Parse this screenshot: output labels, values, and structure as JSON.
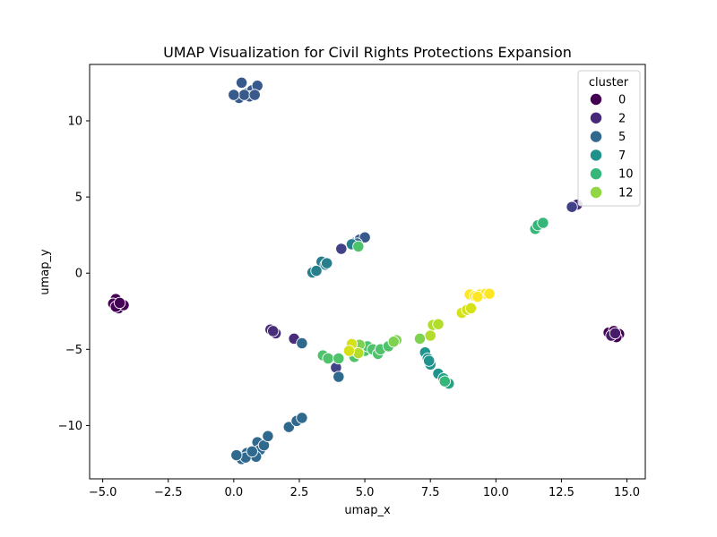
{
  "chart_data": {
    "type": "scatter",
    "title": "UMAP Visualization for Civil Rights Protections Expansion",
    "xlabel": "umap_x",
    "ylabel": "umap_y",
    "xlim": [
      -5.5,
      15.7
    ],
    "ylim": [
      -13.5,
      13.7
    ],
    "xticks": [
      -5.0,
      -2.5,
      0.0,
      2.5,
      5.0,
      7.5,
      10.0,
      12.5,
      15.0
    ],
    "xtick_labels": [
      "−5.0",
      "−2.5",
      "0.0",
      "2.5",
      "5.0",
      "7.5",
      "10.0",
      "12.5",
      "15.0"
    ],
    "yticks": [
      -10,
      -5,
      0,
      5,
      10
    ],
    "ytick_labels": [
      "−10",
      "−5",
      "0",
      "5",
      "10"
    ],
    "grid": false,
    "legend": {
      "title": "cluster",
      "placement": "top-right",
      "entries": [
        {
          "label": "0",
          "color": "#440154"
        },
        {
          "label": "2",
          "color": "#482878"
        },
        {
          "label": "5",
          "color": "#31688e"
        },
        {
          "label": "7",
          "color": "#21918c"
        },
        {
          "label": "10",
          "color": "#35b779"
        },
        {
          "label": "12",
          "color": "#90d743"
        }
      ]
    },
    "points": [
      {
        "x": -4.5,
        "y": -1.7,
        "cluster": 0
      },
      {
        "x": -4.6,
        "y": -2.0,
        "cluster": 0
      },
      {
        "x": -4.4,
        "y": -2.3,
        "cluster": 0
      },
      {
        "x": -4.2,
        "y": -2.1,
        "cluster": 0
      },
      {
        "x": -4.5,
        "y": -2.2,
        "cluster": 0
      },
      {
        "x": -4.35,
        "y": -1.95,
        "cluster": 0
      },
      {
        "x": 14.3,
        "y": -3.9,
        "cluster": 0
      },
      {
        "x": 14.5,
        "y": -3.8,
        "cluster": 0
      },
      {
        "x": 14.7,
        "y": -4.0,
        "cluster": 0
      },
      {
        "x": 14.6,
        "y": -4.2,
        "cluster": 0
      },
      {
        "x": 14.4,
        "y": -4.1,
        "cluster": 1
      },
      {
        "x": 14.55,
        "y": -3.95,
        "cluster": 1
      },
      {
        "x": 1.4,
        "y": -3.7,
        "cluster": 2
      },
      {
        "x": 1.6,
        "y": -3.95,
        "cluster": 2
      },
      {
        "x": 1.5,
        "y": -3.8,
        "cluster": 2
      },
      {
        "x": 2.3,
        "y": -4.3,
        "cluster": 2
      },
      {
        "x": 13.1,
        "y": 4.5,
        "cluster": 2
      },
      {
        "x": 4.1,
        "y": 1.6,
        "cluster": 3
      },
      {
        "x": 12.9,
        "y": 4.35,
        "cluster": 3
      },
      {
        "x": 3.9,
        "y": -6.2,
        "cluster": 3
      },
      {
        "x": 0.3,
        "y": 12.5,
        "cluster": 4
      },
      {
        "x": 0.1,
        "y": 11.6,
        "cluster": 4
      },
      {
        "x": 0.5,
        "y": 11.8,
        "cluster": 4
      },
      {
        "x": 0.7,
        "y": 12.0,
        "cluster": 4
      },
      {
        "x": 0.9,
        "y": 12.3,
        "cluster": 4
      },
      {
        "x": 0.6,
        "y": 11.6,
        "cluster": 4
      },
      {
        "x": 0.2,
        "y": 11.5,
        "cluster": 4
      },
      {
        "x": 0.4,
        "y": 11.7,
        "cluster": 4
      },
      {
        "x": 0.8,
        "y": 11.7,
        "cluster": 4
      },
      {
        "x": 0.0,
        "y": 11.7,
        "cluster": 4
      },
      {
        "x": 4.6,
        "y": 2.0,
        "cluster": 4
      },
      {
        "x": 4.8,
        "y": 2.2,
        "cluster": 4
      },
      {
        "x": 5.0,
        "y": 2.35,
        "cluster": 4
      },
      {
        "x": 0.25,
        "y": -12.0,
        "cluster": 5
      },
      {
        "x": 0.3,
        "y": -12.2,
        "cluster": 5
      },
      {
        "x": 0.5,
        "y": -11.8,
        "cluster": 5
      },
      {
        "x": 0.9,
        "y": -11.1,
        "cluster": 5
      },
      {
        "x": 1.0,
        "y": -11.6,
        "cluster": 5
      },
      {
        "x": 1.15,
        "y": -11.3,
        "cluster": 5
      },
      {
        "x": 0.85,
        "y": -12.05,
        "cluster": 5
      },
      {
        "x": 0.45,
        "y": -12.1,
        "cluster": 5
      },
      {
        "x": 0.1,
        "y": -11.95,
        "cluster": 5
      },
      {
        "x": 0.7,
        "y": -11.7,
        "cluster": 5
      },
      {
        "x": 1.3,
        "y": -10.7,
        "cluster": 5
      },
      {
        "x": 2.1,
        "y": -10.1,
        "cluster": 5
      },
      {
        "x": 2.4,
        "y": -9.7,
        "cluster": 5
      },
      {
        "x": 2.6,
        "y": -9.5,
        "cluster": 5
      },
      {
        "x": 2.6,
        "y": -4.6,
        "cluster": 5
      },
      {
        "x": 4.0,
        "y": -6.8,
        "cluster": 5
      },
      {
        "x": 4.7,
        "y": 1.95,
        "cluster": 5
      },
      {
        "x": 3.35,
        "y": 0.75,
        "cluster": 6
      },
      {
        "x": 3.5,
        "y": 0.55,
        "cluster": 6
      },
      {
        "x": 3.0,
        "y": 0.05,
        "cluster": 6
      },
      {
        "x": 3.15,
        "y": 0.15,
        "cluster": 6
      },
      {
        "x": 3.55,
        "y": 0.65,
        "cluster": 6
      },
      {
        "x": 4.5,
        "y": 1.9,
        "cluster": 6
      },
      {
        "x": 7.3,
        "y": -5.2,
        "cluster": 7
      },
      {
        "x": 7.4,
        "y": -5.6,
        "cluster": 7
      },
      {
        "x": 7.5,
        "y": -6.0,
        "cluster": 7
      },
      {
        "x": 7.45,
        "y": -5.75,
        "cluster": 7
      },
      {
        "x": 7.8,
        "y": -6.6,
        "cluster": 7
      },
      {
        "x": 8.0,
        "y": -6.9,
        "cluster": 8
      },
      {
        "x": 8.2,
        "y": -7.25,
        "cluster": 8
      },
      {
        "x": 8.05,
        "y": -7.1,
        "cluster": 9
      },
      {
        "x": 11.5,
        "y": 2.9,
        "cluster": 9
      },
      {
        "x": 11.6,
        "y": 3.15,
        "cluster": 9
      },
      {
        "x": 11.8,
        "y": 3.3,
        "cluster": 9
      },
      {
        "x": 4.75,
        "y": 1.75,
        "cluster": 10
      },
      {
        "x": 3.4,
        "y": -5.4,
        "cluster": 10
      },
      {
        "x": 3.6,
        "y": -5.6,
        "cluster": 10
      },
      {
        "x": 4.0,
        "y": -5.6,
        "cluster": 10
      },
      {
        "x": 4.5,
        "y": -5.2,
        "cluster": 10
      },
      {
        "x": 4.7,
        "y": -5.0,
        "cluster": 10
      },
      {
        "x": 4.6,
        "y": -5.5,
        "cluster": 10
      },
      {
        "x": 5.0,
        "y": -5.1,
        "cluster": 10
      },
      {
        "x": 5.1,
        "y": -4.8,
        "cluster": 10
      },
      {
        "x": 5.3,
        "y": -5.0,
        "cluster": 10
      },
      {
        "x": 5.5,
        "y": -5.3,
        "cluster": 10
      },
      {
        "x": 5.6,
        "y": -5.0,
        "cluster": 10
      },
      {
        "x": 5.9,
        "y": -4.8,
        "cluster": 10
      },
      {
        "x": 6.2,
        "y": -4.4,
        "cluster": 11
      },
      {
        "x": 6.1,
        "y": -4.5,
        "cluster": 11
      },
      {
        "x": 4.8,
        "y": -4.7,
        "cluster": 11
      },
      {
        "x": 7.1,
        "y": -4.3,
        "cluster": 11
      },
      {
        "x": 7.5,
        "y": -4.1,
        "cluster": 12
      },
      {
        "x": 7.6,
        "y": -3.4,
        "cluster": 12
      },
      {
        "x": 7.8,
        "y": -3.35,
        "cluster": 12
      },
      {
        "x": 4.75,
        "y": -5.25,
        "cluster": 12
      },
      {
        "x": 4.5,
        "y": -4.65,
        "cluster": 13
      },
      {
        "x": 4.4,
        "y": -5.1,
        "cluster": 13
      },
      {
        "x": 8.7,
        "y": -2.6,
        "cluster": 13
      },
      {
        "x": 8.9,
        "y": -2.4,
        "cluster": 13
      },
      {
        "x": 9.05,
        "y": -2.3,
        "cluster": 13
      },
      {
        "x": 9.0,
        "y": -1.4,
        "cluster": 14
      },
      {
        "x": 9.2,
        "y": -1.5,
        "cluster": 14
      },
      {
        "x": 9.4,
        "y": -1.4,
        "cluster": 14
      },
      {
        "x": 9.6,
        "y": -1.35,
        "cluster": 14
      },
      {
        "x": 9.75,
        "y": -1.35,
        "cluster": 14
      },
      {
        "x": 9.3,
        "y": -1.55,
        "cluster": 14
      }
    ]
  }
}
